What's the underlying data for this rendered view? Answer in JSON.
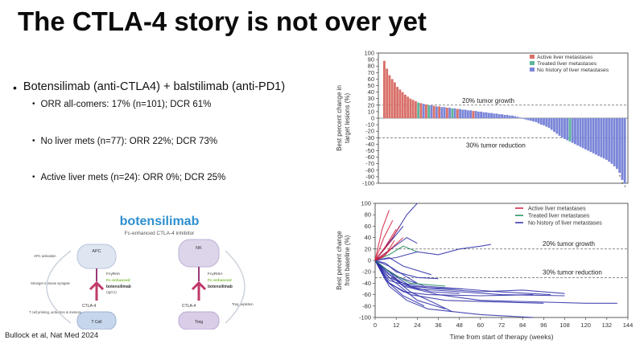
{
  "slide": {
    "title": "The CTLA-4 story is not over yet",
    "bullet_main": "Botensilimab (anti-CTLA4) + balstilimab (anti-PD1)",
    "sub_bullets": [
      "ORR all-comers: 17% (n=101); DCR 61%",
      "No liver mets (n=77): ORR 22%; DCR 73%",
      "Active liver mets (n=24): ORR 0%; DCR 25%"
    ],
    "citation": "Bullock et al, Nat Med 2024"
  },
  "diagram": {
    "drug_name": "botensilimab",
    "subtitle": "Fc-enhanced CTLA-4 inhibitor",
    "left": {
      "apc": "APC",
      "receptor": "FcγRIIA",
      "fc": "Fc-enhanced",
      "drug": "botensilimab",
      "isotype": "(IgG1)",
      "target": "CTLA-4",
      "cell": "T Cell",
      "notes": [
        "APC activation",
        "Stronger immune synapse",
        "T cell priming, activation & memory"
      ]
    },
    "right": {
      "nk": "NK",
      "receptor": "FcγRIIIA",
      "fc": "Fc-enhanced",
      "drug": "botensilimab",
      "target": "CTLA-4",
      "cell": "Treg",
      "notes": [
        "Treg depletion"
      ]
    }
  },
  "colors": {
    "active": "#d9706a",
    "treated": "#5fb59a",
    "nohistory": "#7b86d8",
    "line_active": "#d11f3c",
    "line_treated": "#1e8a5a",
    "line_nohistory": "#2a2aa8",
    "diagram_green": "#7cbf3a",
    "diagram_pink": "#c03a6a"
  },
  "chart_data": [
    {
      "type": "bar",
      "ylabel": "Best percent change in target lesions (%)",
      "ylim": [
        -100,
        100
      ],
      "yticks": [
        100,
        90,
        80,
        70,
        60,
        50,
        40,
        30,
        20,
        10,
        0,
        -10,
        -20,
        -30,
        -40,
        -50,
        -60,
        -70,
        -80,
        -90,
        -100
      ],
      "legend": [
        "Active liver metastases",
        "Treated liver metastases",
        "No history of liver metastases"
      ],
      "legend_position": "top-right",
      "reference_lines": [
        {
          "y": 20,
          "label": "20% tumor growth"
        },
        {
          "y": -30,
          "label": "30% tumor reduction"
        }
      ],
      "asterisk_marker": "*",
      "values": [
        88,
        76,
        66,
        60,
        55,
        48,
        44,
        40,
        36,
        33,
        30,
        28,
        26,
        24,
        23,
        22,
        21,
        20,
        20,
        19,
        18,
        18,
        17,
        17,
        16,
        16,
        15,
        15,
        14,
        14,
        13,
        13,
        12,
        12,
        11,
        11,
        10,
        10,
        9,
        9,
        8,
        8,
        7,
        7,
        6,
        6,
        5,
        5,
        4,
        4,
        3,
        2,
        1,
        -1,
        -2,
        -3,
        -4,
        -5,
        -6,
        -8,
        -10,
        -11,
        -13,
        -15,
        -18,
        -21,
        -24,
        -27,
        -30,
        -32,
        -34,
        -36,
        -38,
        -40,
        -42,
        -44,
        -46,
        -48,
        -50,
        -52,
        -54,
        -56,
        -58,
        -60,
        -62,
        -64,
        -67,
        -70,
        -74,
        -78,
        -84,
        -95,
        -100
      ],
      "groups": [
        "A",
        "A",
        "A",
        "A",
        "A",
        "A",
        "A",
        "A",
        "A",
        "A",
        "A",
        "A",
        "A",
        "T",
        "A",
        "N",
        "A",
        "T",
        "N",
        "A",
        "N",
        "A",
        "N",
        "N",
        "A",
        "N",
        "T",
        "N",
        "A",
        "N",
        "N",
        "N",
        "N",
        "N",
        "A",
        "N",
        "N",
        "N",
        "N",
        "N",
        "N",
        "N",
        "N",
        "N",
        "N",
        "N",
        "N",
        "N",
        "N",
        "N",
        "N",
        "N",
        "N",
        "N",
        "N",
        "N",
        "N",
        "N",
        "N",
        "N",
        "N",
        "N",
        "N",
        "N",
        "N",
        "N",
        "N",
        "N",
        "N",
        "N",
        "N",
        "T",
        "N",
        "N",
        "N",
        "N",
        "N",
        "N",
        "N",
        "N",
        "N",
        "N",
        "N",
        "N",
        "N",
        "N",
        "N",
        "N",
        "N",
        "N",
        "N",
        "N",
        "N"
      ],
      "asterisks_last": 3
    },
    {
      "type": "line",
      "xlabel": "Time from start of therapy (weeks)",
      "ylabel": "Best percent change from baseline (%)",
      "xlim": [
        0,
        144
      ],
      "ylim": [
        -100,
        100
      ],
      "xticks": [
        0,
        12,
        24,
        36,
        48,
        60,
        72,
        84,
        96,
        108,
        120,
        132,
        144
      ],
      "yticks": [
        100,
        80,
        60,
        40,
        20,
        0,
        -20,
        -40,
        -60,
        -80,
        -100
      ],
      "legend": [
        "Active liver metastases",
        "Treated liver metastases",
        "No history of liver metastases"
      ],
      "legend_position": "top-right",
      "reference_lines": [
        {
          "y": 20,
          "label": "20% tumor growth"
        },
        {
          "y": -30,
          "label": "30% tumor reduction"
        }
      ],
      "series": [
        {
          "group": "A",
          "x": [
            0,
            4,
            8
          ],
          "y": [
            0,
            55,
            88
          ]
        },
        {
          "group": "A",
          "x": [
            0,
            5,
            10
          ],
          "y": [
            0,
            40,
            70
          ]
        },
        {
          "group": "A",
          "x": [
            0,
            6,
            12
          ],
          "y": [
            0,
            25,
            55
          ]
        },
        {
          "group": "A",
          "x": [
            0,
            8,
            14
          ],
          "y": [
            0,
            30,
            60
          ]
        },
        {
          "group": "A",
          "x": [
            0,
            6,
            11
          ],
          "y": [
            0,
            10,
            35
          ]
        },
        {
          "group": "A",
          "x": [
            0,
            7,
            16
          ],
          "y": [
            0,
            15,
            40
          ]
        },
        {
          "group": "A",
          "x": [
            0,
            4,
            9
          ],
          "y": [
            0,
            5,
            20
          ]
        },
        {
          "group": "T",
          "x": [
            0,
            8,
            16,
            24
          ],
          "y": [
            0,
            10,
            25,
            15
          ]
        },
        {
          "group": "T",
          "x": [
            0,
            8,
            20,
            40
          ],
          "y": [
            0,
            -20,
            -40,
            -45
          ]
        },
        {
          "group": "N",
          "x": [
            0,
            10,
            18,
            24
          ],
          "y": [
            0,
            40,
            80,
            105
          ]
        },
        {
          "group": "N",
          "x": [
            0,
            8,
            16
          ],
          "y": [
            0,
            30,
            60
          ]
        },
        {
          "group": "N",
          "x": [
            0,
            9,
            18,
            24
          ],
          "y": [
            0,
            20,
            40,
            30
          ]
        },
        {
          "group": "N",
          "x": [
            0,
            12,
            24,
            36,
            48,
            60,
            66
          ],
          "y": [
            0,
            5,
            15,
            10,
            20,
            25,
            28
          ]
        },
        {
          "group": "N",
          "x": [
            0,
            8,
            20,
            36,
            60,
            84,
            108
          ],
          "y": [
            0,
            -30,
            -45,
            -50,
            -55,
            -52,
            -58
          ]
        },
        {
          "group": "N",
          "x": [
            0,
            8,
            16,
            30,
            50,
            70,
            100
          ],
          "y": [
            0,
            -25,
            -40,
            -48,
            -50,
            -55,
            -60
          ]
        },
        {
          "group": "N",
          "x": [
            0,
            6,
            16,
            30,
            60,
            90
          ],
          "y": [
            0,
            -35,
            -55,
            -60,
            -62,
            -60
          ]
        },
        {
          "group": "N",
          "x": [
            0,
            8,
            20,
            40,
            60,
            96
          ],
          "y": [
            0,
            -40,
            -60,
            -70,
            -72,
            -75
          ]
        },
        {
          "group": "N",
          "x": [
            0,
            8,
            16,
            24,
            40
          ],
          "y": [
            0,
            -30,
            -50,
            -70,
            -85
          ]
        },
        {
          "group": "N",
          "x": [
            0,
            8,
            18,
            30,
            60,
            90
          ],
          "y": [
            0,
            -45,
            -70,
            -85,
            -95,
            -100
          ]
        },
        {
          "group": "N",
          "x": [
            0,
            8,
            20,
            32,
            48
          ],
          "y": [
            0,
            -20,
            -45,
            -55,
            -58
          ]
        },
        {
          "group": "N",
          "x": [
            0,
            6,
            14,
            28,
            50
          ],
          "y": [
            0,
            -15,
            -30,
            -45,
            -50
          ]
        },
        {
          "group": "N",
          "x": [
            0,
            8,
            24,
            48,
            72,
            108
          ],
          "y": [
            0,
            -35,
            -50,
            -55,
            -60,
            -62
          ]
        },
        {
          "group": "N",
          "x": [
            0,
            8,
            16,
            36,
            60,
            120,
            138
          ],
          "y": [
            0,
            -20,
            -45,
            -60,
            -70,
            -75,
            -75
          ]
        },
        {
          "group": "N",
          "x": [
            0,
            8,
            16,
            24
          ],
          "y": [
            0,
            -10,
            -25,
            -40
          ]
        },
        {
          "group": "N",
          "x": [
            0,
            6,
            12,
            24,
            36
          ],
          "y": [
            0,
            -5,
            -20,
            -30,
            -32
          ]
        },
        {
          "group": "N",
          "x": [
            0,
            8,
            16,
            32
          ],
          "y": [
            0,
            5,
            -10,
            -25
          ]
        },
        {
          "group": "N",
          "x": [
            0,
            10,
            20,
            34,
            44
          ],
          "y": [
            0,
            -30,
            -55,
            -75,
            -90
          ]
        },
        {
          "group": "N",
          "x": [
            0,
            8,
            16,
            28
          ],
          "y": [
            0,
            -40,
            -62,
            -80
          ]
        }
      ]
    }
  ]
}
